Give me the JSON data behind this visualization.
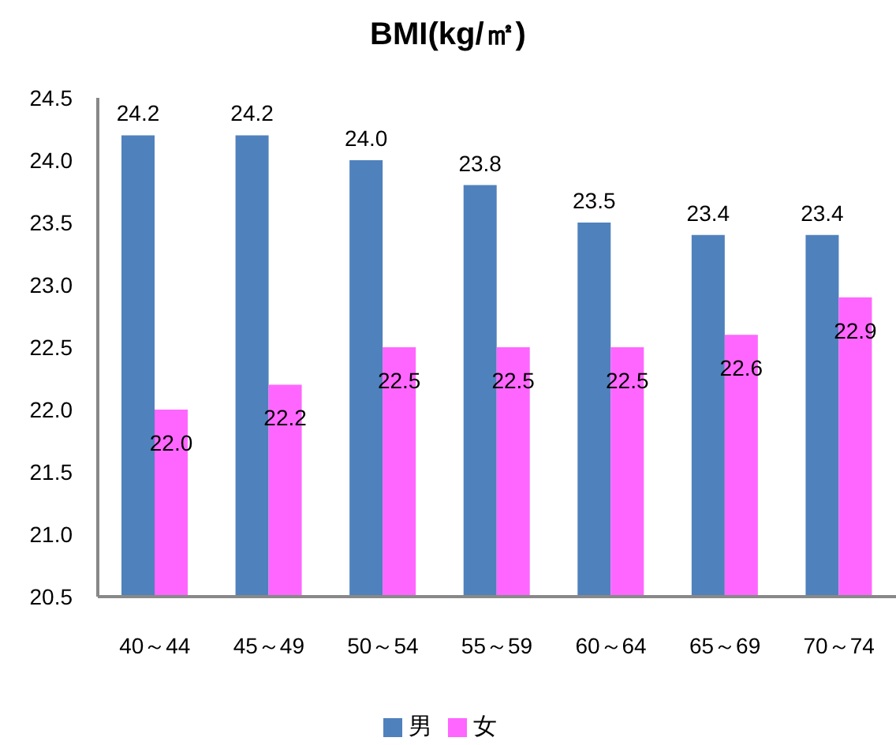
{
  "chart_data": {
    "type": "bar",
    "title": "BMI(kg/㎡)",
    "categories": [
      "40～44",
      "45～49",
      "50～54",
      "55～59",
      "60～64",
      "65～69",
      "70～74"
    ],
    "series": [
      {
        "name": "男",
        "color": "#4f81bd",
        "values": [
          24.2,
          24.2,
          24.0,
          23.8,
          23.5,
          23.4,
          23.4
        ],
        "value_labels": [
          "24.2",
          "24.2",
          "24.0",
          "23.8",
          "23.5",
          "23.4",
          "23.4"
        ]
      },
      {
        "name": "女",
        "color": "#ff66ff",
        "values": [
          22.0,
          22.2,
          22.5,
          22.5,
          22.5,
          22.6,
          22.9
        ],
        "value_labels": [
          "22.0",
          "22.2",
          "22.5",
          "22.5",
          "22.5",
          "22.6",
          "22.9"
        ]
      }
    ],
    "ylim": [
      20.5,
      24.5
    ],
    "yticks": [
      20.5,
      {
        "value": 21,
        "label": "21.0"
      },
      21.5,
      {
        "value": 22,
        "label": "22.0"
      },
      22.5,
      {
        "value": 23,
        "label": "23.0"
      },
      23.5,
      {
        "value": 24,
        "label": "24.0"
      },
      24.5
    ],
    "legend": "bottom"
  }
}
